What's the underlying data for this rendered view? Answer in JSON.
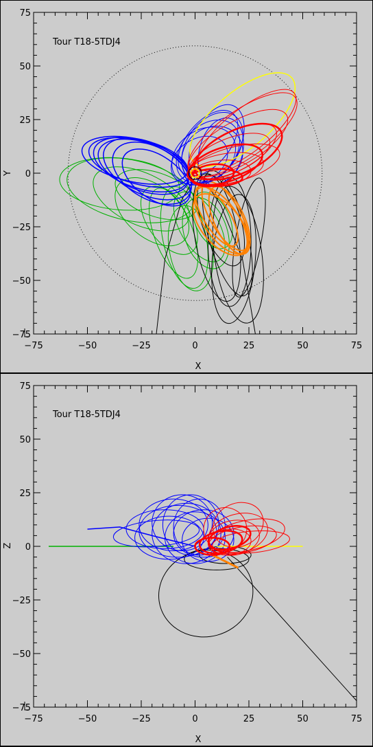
{
  "chart_data": [
    {
      "type": "line",
      "title": "Tour T18-5TDJ4",
      "xlabel": "X",
      "ylabel": "Y",
      "xlim": [
        -75,
        75
      ],
      "ylim": [
        -75,
        75
      ],
      "xticks": [
        "−75",
        "−50",
        "−25",
        "0",
        "25",
        "50",
        "75"
      ],
      "yticks": [
        "75",
        "50",
        "25",
        "0",
        "−25",
        "−50",
        "−75"
      ],
      "reference_circle_radius": 59,
      "colors": {
        "blue": "#0000ff",
        "green": "#00b000",
        "red": "#ff0000",
        "yellow": "#ffff00",
        "orange": "#ff8000",
        "black": "#000000"
      }
    },
    {
      "type": "line",
      "title": "Tour T18-5TDJ4",
      "xlabel": "X",
      "ylabel": "Z",
      "xlim": [
        -75,
        75
      ],
      "ylim": [
        -75,
        75
      ],
      "xticks": [
        "−75",
        "−50",
        "−25",
        "0",
        "25",
        "50",
        "75"
      ],
      "yticks": [
        "75",
        "50",
        "25",
        "0",
        "−25",
        "−50",
        "−75"
      ],
      "colors": {
        "blue": "#0000ff",
        "green": "#00b000",
        "red": "#ff0000",
        "yellow": "#ffff00",
        "orange": "#ff8000",
        "black": "#000000"
      }
    }
  ]
}
